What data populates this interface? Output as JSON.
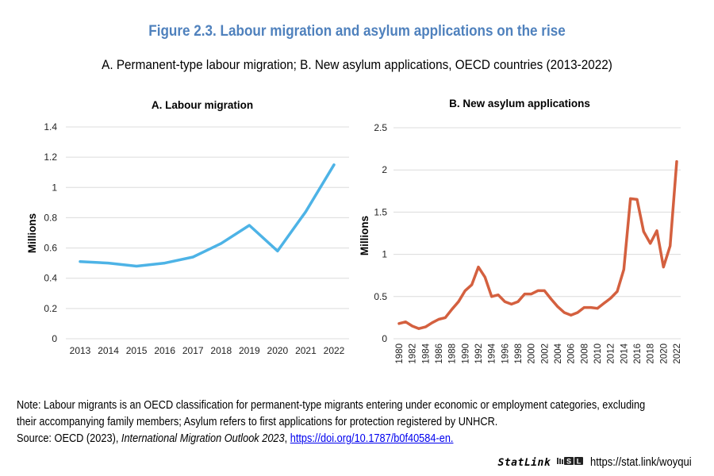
{
  "figure": {
    "title": "Figure 2.3. Labour migration and asylum applications on the rise",
    "subtitle": "A. Permanent-type labour migration; B. New asylum applications, OECD countries (2013-2022)",
    "title_color": "#4f81bd"
  },
  "chart_data": [
    {
      "type": "line",
      "title": "A. Labour migration",
      "xlabel": "",
      "ylabel": "Millions",
      "ylim": [
        0,
        1.4
      ],
      "yticks": [
        "0",
        "0.2",
        "0.4",
        "0.6",
        "0.8",
        "1",
        "1.2",
        "1.4"
      ],
      "ytick_values": [
        0,
        0.2,
        0.4,
        0.6,
        0.8,
        1.0,
        1.2,
        1.4
      ],
      "grid": true,
      "legend": "none",
      "x": [
        "2013",
        "2014",
        "2015",
        "2016",
        "2017",
        "2018",
        "2019",
        "2020",
        "2021",
        "2022"
      ],
      "series": [
        {
          "name": "Labour migration",
          "color": "#4db3e6",
          "values": [
            0.51,
            0.5,
            0.48,
            0.5,
            0.54,
            0.63,
            0.75,
            0.58,
            0.84,
            1.15
          ]
        }
      ]
    },
    {
      "type": "line",
      "title": "B. New asylum applications",
      "xlabel": "",
      "ylabel": "Millions",
      "ylim": [
        0,
        2.5
      ],
      "yticks": [
        "0",
        "0.5",
        "1",
        "1.5",
        "2",
        "2.5"
      ],
      "ytick_values": [
        0,
        0.5,
        1.0,
        1.5,
        2.0,
        2.5
      ],
      "grid": true,
      "legend": "none",
      "x": [
        "1980",
        "1981",
        "1982",
        "1983",
        "1984",
        "1985",
        "1986",
        "1987",
        "1988",
        "1989",
        "1990",
        "1991",
        "1992",
        "1993",
        "1994",
        "1995",
        "1996",
        "1997",
        "1998",
        "1999",
        "2000",
        "2001",
        "2002",
        "2003",
        "2004",
        "2005",
        "2006",
        "2007",
        "2008",
        "2009",
        "2010",
        "2011",
        "2012",
        "2013",
        "2014",
        "2015",
        "2016",
        "2017",
        "2018",
        "2019",
        "2020",
        "2021",
        "2022"
      ],
      "xtick_labels": [
        "1980",
        "1982",
        "1984",
        "1986",
        "1988",
        "1990",
        "1992",
        "1994",
        "1996",
        "1998",
        "2000",
        "2002",
        "2004",
        "2006",
        "2008",
        "2010",
        "2012",
        "2014",
        "2016",
        "2018",
        "2020",
        "2022"
      ],
      "series": [
        {
          "name": "New asylum applications",
          "color": "#d4603f",
          "values": [
            0.18,
            0.2,
            0.15,
            0.12,
            0.14,
            0.19,
            0.23,
            0.25,
            0.35,
            0.44,
            0.57,
            0.64,
            0.85,
            0.73,
            0.5,
            0.52,
            0.44,
            0.41,
            0.44,
            0.53,
            0.53,
            0.57,
            0.57,
            0.47,
            0.38,
            0.31,
            0.28,
            0.31,
            0.37,
            0.37,
            0.36,
            0.42,
            0.48,
            0.56,
            0.82,
            1.66,
            1.65,
            1.27,
            1.13,
            1.28,
            0.85,
            1.1,
            2.1
          ]
        }
      ]
    }
  ],
  "footer": {
    "note": "Note: Labour migrants is an OECD classification for permanent-type migrants entering under economic or employment categories, excluding their accompanying family members; Asylum refers to first applications for protection registered by UNHCR.",
    "note_line1": "Note: Labour migrants is an OECD classification for permanent-type migrants entering under economic or employment categories, excluding",
    "note_line2": "their accompanying family members; Asylum refers to first applications for protection registered by UNHCR.",
    "source_prefix": "Source: OECD (2023), ",
    "source_title": "International Migration Outlook 2023",
    "source_sep": ", ",
    "source_link": "https://doi.org/10.1787/b0f40584-en.",
    "statlink_brand": "StatLink",
    "statlink_icon": "statlink-logo-icon",
    "statlink_url": "https://stat.link/woyqui"
  }
}
